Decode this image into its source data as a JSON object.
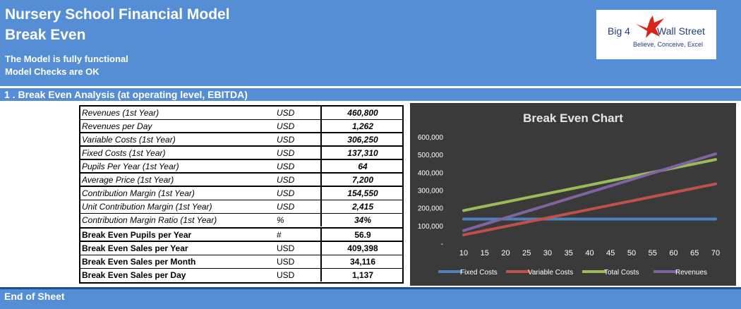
{
  "header": {
    "title_line1": "Nursery School Financial Model",
    "title_line2": "Break Even",
    "status_line1": "The Model is fully functional",
    "status_line2": "Model Checks are OK"
  },
  "logo": {
    "left_text": "Big 4",
    "right_text": "Wall Street",
    "tagline": "Believe, Conceive, Excel"
  },
  "section": {
    "title": "1 .  Break Even Analysis (at operating level, EBITDA)"
  },
  "inputs": [
    {
      "label": "Revenues (1st Year)",
      "unit": "USD",
      "value": "460,800"
    },
    {
      "label": "Revenues per Day",
      "unit": "USD",
      "value": "1,262"
    },
    {
      "label": "Variable Costs (1st Year)",
      "unit": "USD",
      "value": "306,250"
    },
    {
      "label": "Fixed Costs (1st Year)",
      "unit": "USD",
      "value": "137,310"
    },
    {
      "label": "Pupils Per Year (1st Year)",
      "unit": "USD",
      "value": "64"
    },
    {
      "label": "Average Price (1st Year)",
      "unit": "USD",
      "value": "7,200"
    },
    {
      "label": "Contribution Margin (1st Year)",
      "unit": "USD",
      "value": "154,550"
    },
    {
      "label": "Unit Contribution Margin (1st Year)",
      "unit": "USD",
      "value": "2,415"
    },
    {
      "label": "Contribution Margin Ratio (1st Year)",
      "unit": "%",
      "value": "34%"
    }
  ],
  "results": [
    {
      "label": "Break Even Pupils per Year",
      "unit": "#",
      "value": "56.9"
    },
    {
      "label": "Break Even Sales per Year",
      "unit": "USD",
      "value": "409,398"
    },
    {
      "label": "Break Even Sales per Month",
      "unit": "USD",
      "value": "34,116"
    },
    {
      "label": "Break Even Sales per Day",
      "unit": "USD",
      "value": "1,137"
    }
  ],
  "footer": {
    "label": "End of Sheet"
  },
  "colors": {
    "band": "#558ed5",
    "chart_bg": "#3a3a3a",
    "fixed": "#4f81bd",
    "variable": "#c0504d",
    "total": "#9bbb59",
    "revenues": "#8064a2"
  },
  "chart_data": {
    "type": "line",
    "title": "Break Even Chart",
    "x": [
      10,
      15,
      20,
      25,
      30,
      35,
      40,
      45,
      50,
      55,
      60,
      65,
      70
    ],
    "y_ticks": [
      "600,000",
      "500,000",
      "400,000",
      "300,000",
      "200,000",
      "100,000",
      "-"
    ],
    "ylim": [
      0,
      600000
    ],
    "legend_position": "bottom",
    "series": [
      {
        "name": "Fixed Costs",
        "color": "#4f81bd",
        "values": [
          137310,
          137310,
          137310,
          137310,
          137310,
          137310,
          137310,
          137310,
          137310,
          137310,
          137310,
          137310,
          137310
        ]
      },
      {
        "name": "Variable Costs",
        "color": "#c0504d",
        "values": [
          47852,
          71777,
          95703,
          119629,
          143555,
          167480,
          191406,
          215332,
          239258,
          263184,
          287109,
          311035,
          334961
        ]
      },
      {
        "name": "Total Costs",
        "color": "#9bbb59",
        "values": [
          185162,
          209087,
          233013,
          256939,
          280865,
          304790,
          328716,
          352642,
          376568,
          400494,
          424419,
          448345,
          472271
        ]
      },
      {
        "name": "Revenues",
        "color": "#8064a2",
        "values": [
          72000,
          108000,
          144000,
          180000,
          216000,
          252000,
          288000,
          324000,
          360000,
          396000,
          432000,
          468000,
          504000
        ]
      }
    ]
  }
}
